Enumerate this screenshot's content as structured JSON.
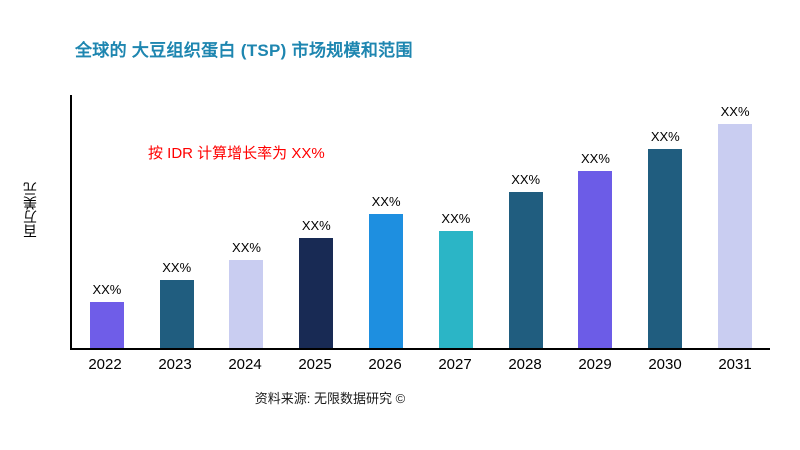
{
  "page": {
    "title": "全球的 大豆组织蛋白 (TSP) 市场规模和范围",
    "annotation": "按 IDR 计算增长率为 XX%",
    "ylabel": "百万美元",
    "source": "资料来源: 无限数据研究 ©"
  },
  "colors": {
    "title": "#1E86B0",
    "annotation": "#FF0000",
    "axis": "#000000"
  },
  "chart_data": {
    "type": "bar",
    "title": "全球的 大豆组织蛋白 (TSP) 市场规模和范围",
    "ylabel": "百万美元",
    "xlabel": "",
    "categories": [
      "2022",
      "2023",
      "2024",
      "2025",
      "2026",
      "2027",
      "2028",
      "2029",
      "2030",
      "2031"
    ],
    "values": [
      47,
      70,
      90,
      113,
      138,
      120,
      160,
      182,
      205,
      230
    ],
    "bar_labels": [
      "XX%",
      "XX%",
      "XX%",
      "XX%",
      "XX%",
      "XX%",
      "XX%",
      "XX%",
      "XX%",
      "XX%"
    ],
    "bar_colors": [
      "#6F5DE8",
      "#205D7F",
      "#C9CDF1",
      "#182A54",
      "#1E8FE0",
      "#2BB5C6",
      "#205D7F",
      "#6C5CE7",
      "#205D7F",
      "#C9CDF1"
    ],
    "ylim": [
      0,
      260
    ],
    "grid": false,
    "legend": "none",
    "annotation": "按 IDR 计算增长率为 XX%",
    "source": "资料来源: 无限数据研究 ©"
  }
}
